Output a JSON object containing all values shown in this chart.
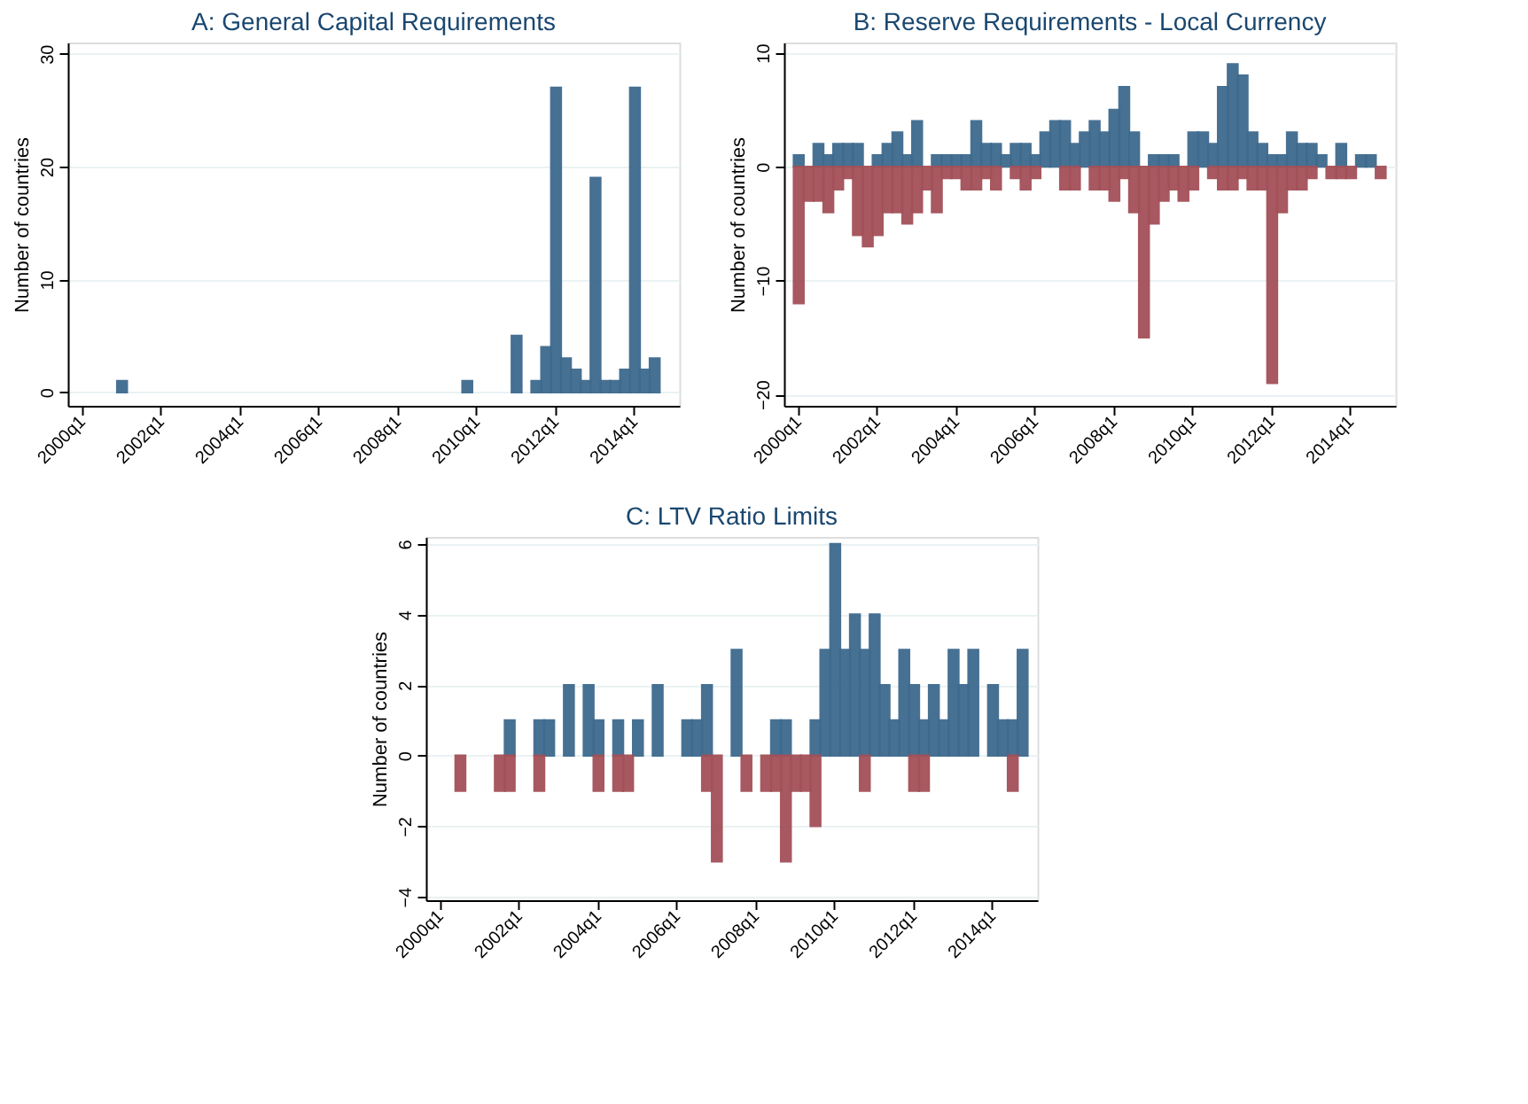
{
  "chart_data": [
    {
      "type": "bar",
      "title": "A: General Capital Requirements",
      "ylabel": "Number of countries",
      "grid": "y",
      "categories": [
        "2000q1",
        null,
        null,
        null,
        null,
        null,
        null,
        null,
        "2002q1",
        null,
        null,
        null,
        null,
        null,
        null,
        null,
        "2004q1",
        null,
        null,
        null,
        null,
        null,
        null,
        null,
        "2006q1",
        null,
        null,
        null,
        null,
        null,
        null,
        null,
        "2008q1",
        null,
        null,
        null,
        null,
        null,
        null,
        null,
        "2010q1",
        null,
        null,
        null,
        null,
        null,
        null,
        null,
        "2012q1",
        null,
        null,
        null,
        null,
        null,
        null,
        null,
        "2014q1",
        null,
        null,
        null
      ],
      "series": [
        {
          "color": "#3e6a8e",
          "values": [
            null,
            null,
            null,
            null,
            1,
            null,
            null,
            null,
            null,
            null,
            null,
            null,
            null,
            null,
            null,
            null,
            null,
            null,
            null,
            null,
            null,
            null,
            null,
            null,
            null,
            null,
            null,
            null,
            null,
            null,
            null,
            null,
            null,
            null,
            null,
            null,
            null,
            null,
            null,
            1,
            null,
            null,
            null,
            null,
            5,
            null,
            1,
            4,
            27,
            3,
            2,
            1,
            19,
            1,
            1,
            2,
            27,
            2,
            3,
            null
          ]
        }
      ],
      "ylim": [
        -1.2,
        31
      ],
      "yticks": [
        0,
        10,
        20,
        30
      ]
    },
    {
      "type": "bar",
      "title": "B: Reserve Requirements - Local Currency",
      "ylabel": "Number of countries",
      "grid": "y",
      "categories": [
        "2000q1",
        null,
        null,
        null,
        null,
        null,
        null,
        null,
        "2002q1",
        null,
        null,
        null,
        null,
        null,
        null,
        null,
        "2004q1",
        null,
        null,
        null,
        null,
        null,
        null,
        null,
        "2006q1",
        null,
        null,
        null,
        null,
        null,
        null,
        null,
        "2008q1",
        null,
        null,
        null,
        null,
        null,
        null,
        null,
        "2010q1",
        null,
        null,
        null,
        null,
        null,
        null,
        null,
        "2012q1",
        null,
        null,
        null,
        null,
        null,
        null,
        null,
        "2014q1",
        null,
        null,
        null
      ],
      "series": [
        {
          "color": "#3e6a8e",
          "values": [
            1,
            null,
            2,
            1,
            2,
            2,
            2,
            null,
            1,
            2,
            3,
            1,
            4,
            null,
            1,
            1,
            1,
            1,
            4,
            2,
            2,
            1,
            2,
            2,
            1,
            3,
            4,
            4,
            2,
            3,
            4,
            3,
            5,
            7,
            3,
            null,
            1,
            1,
            1,
            null,
            3,
            3,
            2,
            7,
            9,
            8,
            3,
            2,
            1,
            1,
            3,
            2,
            2,
            1,
            null,
            2,
            null,
            1,
            1,
            null
          ]
        },
        {
          "color": "#a35058",
          "values": [
            -12,
            -3,
            -3,
            -4,
            -2,
            -1,
            -6,
            -7,
            -6,
            -4,
            -4,
            -5,
            -4,
            -2,
            -4,
            -1,
            -1,
            -2,
            -2,
            -1,
            -2,
            null,
            -1,
            -2,
            -1,
            null,
            null,
            -2,
            -2,
            null,
            -2,
            -2,
            -3,
            -1,
            -4,
            -15,
            -5,
            -3,
            -2,
            -3,
            -2,
            null,
            -1,
            -2,
            -2,
            -1,
            -2,
            -2,
            -19,
            -4,
            -2,
            -2,
            -1,
            null,
            -1,
            -1,
            -1,
            null,
            null,
            -1
          ]
        }
      ],
      "ylim": [
        -21,
        10.9
      ],
      "yticks": [
        -20,
        -10,
        0,
        10
      ]
    },
    {
      "type": "bar",
      "title": "C: LTV Ratio Limits",
      "ylabel": "Number of countries",
      "grid": "y",
      "categories": [
        "2000q1",
        null,
        null,
        null,
        null,
        null,
        null,
        null,
        "2002q1",
        null,
        null,
        null,
        null,
        null,
        null,
        null,
        "2004q1",
        null,
        null,
        null,
        null,
        null,
        null,
        null,
        "2006q1",
        null,
        null,
        null,
        null,
        null,
        null,
        null,
        "2008q1",
        null,
        null,
        null,
        null,
        null,
        null,
        null,
        "2010q1",
        null,
        null,
        null,
        null,
        null,
        null,
        null,
        "2012q1",
        null,
        null,
        null,
        null,
        null,
        null,
        null,
        "2014q1",
        null,
        null,
        null
      ],
      "series": [
        {
          "color": "#3e6a8e",
          "values": [
            null,
            null,
            null,
            null,
            null,
            null,
            null,
            1,
            null,
            null,
            1,
            1,
            null,
            2,
            null,
            2,
            1,
            null,
            1,
            null,
            1,
            null,
            2,
            null,
            null,
            1,
            1,
            2,
            null,
            null,
            3,
            null,
            null,
            null,
            1,
            1,
            null,
            null,
            1,
            3,
            6,
            3,
            4,
            3,
            4,
            2,
            1,
            3,
            2,
            1,
            2,
            1,
            3,
            2,
            3,
            null,
            2,
            1,
            1,
            3
          ]
        },
        {
          "color": "#a35058",
          "values": [
            null,
            null,
            -1,
            null,
            null,
            null,
            -1,
            -1,
            null,
            null,
            -1,
            null,
            null,
            null,
            null,
            null,
            -1,
            null,
            -1,
            -1,
            null,
            null,
            null,
            null,
            null,
            null,
            null,
            -1,
            -3,
            null,
            null,
            -1,
            null,
            -1,
            -1,
            -3,
            -1,
            -1,
            -2,
            null,
            null,
            null,
            null,
            -1,
            null,
            null,
            null,
            null,
            -1,
            -1,
            null,
            null,
            null,
            null,
            null,
            null,
            null,
            null,
            -1,
            null
          ]
        }
      ],
      "ylim": [
        -4.1,
        6.2
      ],
      "yticks": [
        -4,
        -2,
        0,
        2,
        4,
        6
      ]
    }
  ]
}
